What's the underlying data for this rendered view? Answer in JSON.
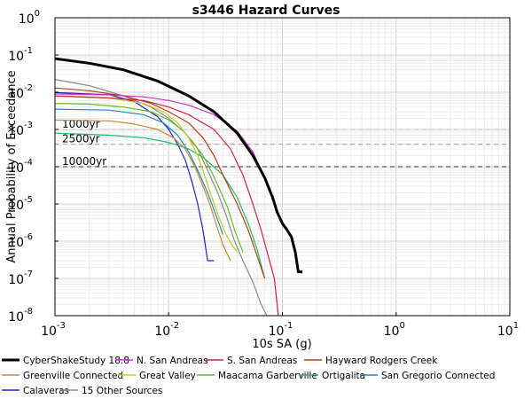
{
  "chart_data": {
    "type": "line",
    "title": "s3446 Hazard Curves",
    "xlabel": "10s SA (g)",
    "ylabel": "Annual Probability of Exceedance",
    "xscale": "log",
    "yscale": "log",
    "xlim": [
      0.001,
      10
    ],
    "ylim": [
      1e-08,
      1
    ],
    "x_ticks": [
      {
        "base": "10",
        "exp": "-3"
      },
      {
        "base": "10",
        "exp": "-2"
      },
      {
        "base": "10",
        "exp": "-1"
      },
      {
        "base": "10",
        "exp": "0"
      },
      {
        "base": "10",
        "exp": "1"
      }
    ],
    "y_ticks": [
      {
        "base": "10",
        "exp": "0"
      },
      {
        "base": "10",
        "exp": "-1"
      },
      {
        "base": "10",
        "exp": "-2"
      },
      {
        "base": "10",
        "exp": "-3"
      },
      {
        "base": "10",
        "exp": "-4"
      },
      {
        "base": "10",
        "exp": "-5"
      },
      {
        "base": "10",
        "exp": "-6"
      },
      {
        "base": "10",
        "exp": "-7"
      },
      {
        "base": "10",
        "exp": "-8"
      }
    ],
    "reference_lines": [
      {
        "label": "1000yr",
        "y": 0.001,
        "color": "#bbbbbb"
      },
      {
        "label": "2500yr",
        "y": 0.0004,
        "color": "#999999"
      },
      {
        "label": "10000yr",
        "y": 0.0001,
        "color": "#333333"
      }
    ],
    "legend_location": "bottom",
    "series": [
      {
        "name": "CyberShakeStudy 18.8",
        "color": "#000000",
        "width": 3,
        "x": [
          0.001,
          0.002,
          0.004,
          0.008,
          0.015,
          0.025,
          0.04,
          0.055,
          0.07,
          0.082,
          0.09,
          0.1,
          0.11,
          0.12,
          0.13,
          0.138,
          0.15
        ],
        "y": [
          0.08,
          0.06,
          0.04,
          0.02,
          0.008,
          0.003,
          0.0008,
          0.0002,
          5e-05,
          1.5e-05,
          6e-06,
          3e-06,
          2e-06,
          1.3e-06,
          5e-07,
          1.5e-07,
          1.5e-07
        ]
      },
      {
        "name": "N. San Andreas",
        "color": "#cc33cc",
        "width": 1.2,
        "x": [
          0.001,
          0.003,
          0.006,
          0.01,
          0.015,
          0.025,
          0.04,
          0.055,
          0.07,
          0.082,
          0.09,
          0.1,
          0.11,
          0.12,
          0.13,
          0.138,
          0.15
        ],
        "y": [
          0.009,
          0.0085,
          0.0075,
          0.006,
          0.0045,
          0.0025,
          0.0009,
          0.00025,
          5e-05,
          1.5e-05,
          6e-06,
          3e-06,
          2e-06,
          1.3e-06,
          5e-07,
          1.5e-07,
          1.5e-07
        ]
      },
      {
        "name": "S. San Andreas",
        "color": "#cc2244",
        "width": 1.2,
        "x": [
          0.001,
          0.003,
          0.006,
          0.01,
          0.015,
          0.025,
          0.035,
          0.045,
          0.055,
          0.065,
          0.075,
          0.085,
          0.092
        ],
        "y": [
          0.008,
          0.007,
          0.006,
          0.004,
          0.0025,
          0.001,
          0.0003,
          6e-05,
          1e-05,
          2e-06,
          4e-07,
          1e-07,
          1e-08
        ]
      },
      {
        "name": "Hayward Rodgers Creek",
        "color": "#b04010",
        "width": 1.2,
        "x": [
          0.001,
          0.002,
          0.004,
          0.007,
          0.01,
          0.015,
          0.02,
          0.025,
          0.03,
          0.04,
          0.05,
          0.06,
          0.07
        ],
        "y": [
          0.013,
          0.011,
          0.008,
          0.005,
          0.003,
          0.0015,
          0.0006,
          0.0002,
          6e-05,
          1e-05,
          2e-06,
          4e-07,
          1e-07
        ]
      },
      {
        "name": "Greenville Connected",
        "color": "#cc8833",
        "width": 1.2,
        "x": [
          0.001,
          0.003,
          0.005,
          0.008,
          0.011,
          0.014,
          0.017,
          0.02,
          0.023,
          0.026,
          0.03,
          0.035
        ],
        "y": [
          0.0018,
          0.0017,
          0.0014,
          0.001,
          0.0006,
          0.0003,
          0.0001,
          3e-05,
          1e-05,
          3e-06,
          8e-07,
          3e-07
        ]
      },
      {
        "name": "Great Valley",
        "color": "#c8c820",
        "width": 1.2,
        "x": [
          0.001,
          0.003,
          0.006,
          0.009,
          0.012,
          0.015,
          0.018,
          0.021,
          0.024,
          0.028,
          0.032,
          0.036,
          0.04
        ],
        "y": [
          0.008,
          0.007,
          0.005,
          0.003,
          0.0015,
          0.0006,
          0.0002,
          5e-05,
          1.5e-05,
          4e-06,
          1.5e-06,
          8e-07,
          5e-07
        ]
      },
      {
        "name": "Maacama Garberville",
        "color": "#66bb22",
        "width": 1.2,
        "x": [
          0.001,
          0.002,
          0.004,
          0.007,
          0.01,
          0.013,
          0.016,
          0.02,
          0.024,
          0.028,
          0.033,
          0.038,
          0.045
        ],
        "y": [
          0.005,
          0.0048,
          0.004,
          0.003,
          0.0018,
          0.001,
          0.0005,
          0.0002,
          7e-05,
          2.5e-05,
          8e-06,
          2e-06,
          5e-07
        ]
      },
      {
        "name": "Ortigalita",
        "color": "#22bb66",
        "width": 1.2,
        "x": [
          0.001,
          0.003,
          0.006,
          0.01,
          0.015,
          0.02,
          0.03,
          0.04,
          0.05,
          0.06,
          0.07
        ],
        "y": [
          0.0008,
          0.0007,
          0.0006,
          0.00045,
          0.0003,
          0.00018,
          6e-05,
          1.5e-05,
          3e-06,
          6e-07,
          1e-07
        ]
      },
      {
        "name": "San Gregorio Connected",
        "color": "#2288bb",
        "width": 1.2,
        "x": [
          0.001,
          0.003,
          0.006,
          0.009,
          0.012,
          0.015,
          0.018,
          0.022,
          0.026,
          0.03
        ],
        "y": [
          0.0035,
          0.0033,
          0.0025,
          0.0015,
          0.0007,
          0.00025,
          8e-05,
          2e-05,
          5e-06,
          1.5e-06
        ]
      },
      {
        "name": "Calaveras",
        "color": "#2222bb",
        "width": 1.2,
        "x": [
          0.001,
          0.003,
          0.005,
          0.008,
          0.01,
          0.012,
          0.014,
          0.016,
          0.018,
          0.02,
          0.022,
          0.025
        ],
        "y": [
          0.0098,
          0.0086,
          0.0056,
          0.0022,
          0.001,
          0.0004,
          0.00015,
          4e-05,
          1e-05,
          2e-06,
          3e-07,
          3e-07
        ]
      },
      {
        "name": "15 Other Sources",
        "color": "#888888",
        "width": 1.2,
        "x": [
          0.001,
          0.002,
          0.004,
          0.007,
          0.01,
          0.014,
          0.018,
          0.022,
          0.027,
          0.032,
          0.038,
          0.045,
          0.055,
          0.065,
          0.073
        ],
        "y": [
          0.022,
          0.015,
          0.008,
          0.004,
          0.002,
          0.0008,
          0.0003,
          8e-05,
          2e-05,
          5e-06,
          1e-06,
          3e-07,
          8e-08,
          2e-08,
          1e-08
        ]
      }
    ]
  }
}
